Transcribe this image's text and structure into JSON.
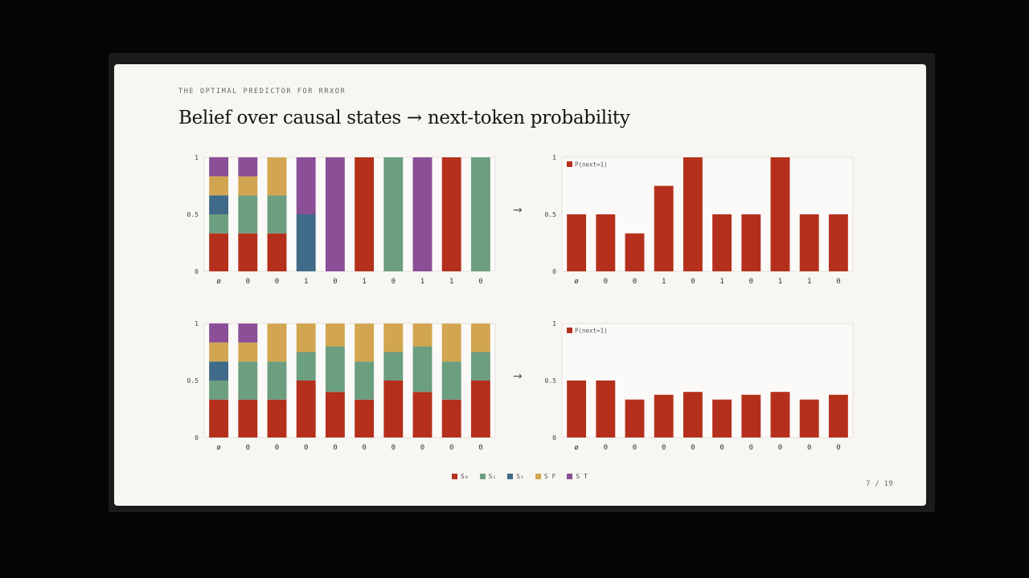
{
  "slide": {
    "eyebrow": "THE OPTIMAL PREDICTOR FOR RRXOR",
    "title": "Belief over causal states  →  next-token probability",
    "arrow": "→",
    "page": "7 / 19"
  },
  "colors": {
    "state_s0": "#b5301c",
    "state_s1": "#6c9e80",
    "state_s2": "#3f6b89",
    "state_sf": "#d2a650",
    "state_st": "#8b4f97",
    "prob": "#b5301c"
  },
  "legend": [
    {
      "label": "S₀",
      "color": "#b5301c"
    },
    {
      "label": "S₁",
      "color": "#6c9e80"
    },
    {
      "label": "S₁",
      "color": "#3f6b89"
    },
    {
      "label": "S F",
      "color": "#d2a650"
    },
    {
      "label": "S T",
      "color": "#8b4f97"
    }
  ],
  "chart_data": [
    {
      "type": "bar",
      "stacked": true,
      "categories": [
        "ø",
        "0",
        "0",
        "1",
        "0",
        "1",
        "0",
        "1",
        "1",
        "0"
      ],
      "yticks": [
        "0",
        "0.5",
        "1"
      ],
      "ylim": [
        0,
        1
      ],
      "series": [
        {
          "values": [
            0.333,
            0.333,
            0.333,
            0,
            0,
            1,
            0,
            0,
            1,
            0
          ]
        },
        {
          "values": [
            0.167,
            0.333,
            0.333,
            0,
            0,
            0,
            1,
            0,
            0,
            1
          ]
        },
        {
          "values": [
            0.167,
            0,
            0,
            0.5,
            0,
            0,
            0,
            0,
            0,
            0
          ]
        },
        {
          "values": [
            0.167,
            0.167,
            0.333,
            0,
            0,
            0,
            0,
            0,
            0,
            0
          ]
        },
        {
          "values": [
            0.167,
            0.167,
            0,
            0.5,
            1,
            0,
            0,
            1,
            0,
            0
          ]
        }
      ]
    },
    {
      "type": "bar",
      "categories": [
        "ø",
        "0",
        "0",
        "1",
        "0",
        "1",
        "0",
        "1",
        "1",
        "0"
      ],
      "yticks": [
        "0",
        "0.5",
        "1"
      ],
      "ylim": [
        0,
        1
      ],
      "legend_label": "P(next=1)",
      "series": [
        {
          "values": [
            0.5,
            0.5,
            0.333,
            0.75,
            1,
            0.5,
            0.5,
            1,
            0.5,
            0.5
          ]
        }
      ]
    },
    {
      "type": "bar",
      "stacked": true,
      "categories": [
        "ø",
        "0",
        "0",
        "0",
        "0",
        "0",
        "0",
        "0",
        "0",
        "0"
      ],
      "yticks": [
        "0",
        "0.5",
        "1"
      ],
      "ylim": [
        0,
        1
      ],
      "series": [
        {
          "values": [
            0.333,
            0.333,
            0.333,
            0.5,
            0.4,
            0.333,
            0.5,
            0.4,
            0.333,
            0.5
          ]
        },
        {
          "values": [
            0.167,
            0.333,
            0.333,
            0.25,
            0.4,
            0.333,
            0.25,
            0.4,
            0.333,
            0.25
          ]
        },
        {
          "values": [
            0.167,
            0,
            0,
            0,
            0,
            0,
            0,
            0,
            0,
            0
          ]
        },
        {
          "values": [
            0.167,
            0.167,
            0.333,
            0.25,
            0.2,
            0.333,
            0.25,
            0.2,
            0.333,
            0.25
          ]
        },
        {
          "values": [
            0.167,
            0.167,
            0,
            0,
            0,
            0,
            0,
            0,
            0,
            0
          ]
        }
      ]
    },
    {
      "type": "bar",
      "categories": [
        "ø",
        "0",
        "0",
        "0",
        "0",
        "0",
        "0",
        "0",
        "0",
        "0"
      ],
      "yticks": [
        "0",
        "0.5",
        "1"
      ],
      "ylim": [
        0,
        1
      ],
      "legend_label": "P(next=1)",
      "series": [
        {
          "values": [
            0.5,
            0.5,
            0.333,
            0.375,
            0.4,
            0.333,
            0.375,
            0.4,
            0.333,
            0.375
          ]
        }
      ]
    }
  ]
}
